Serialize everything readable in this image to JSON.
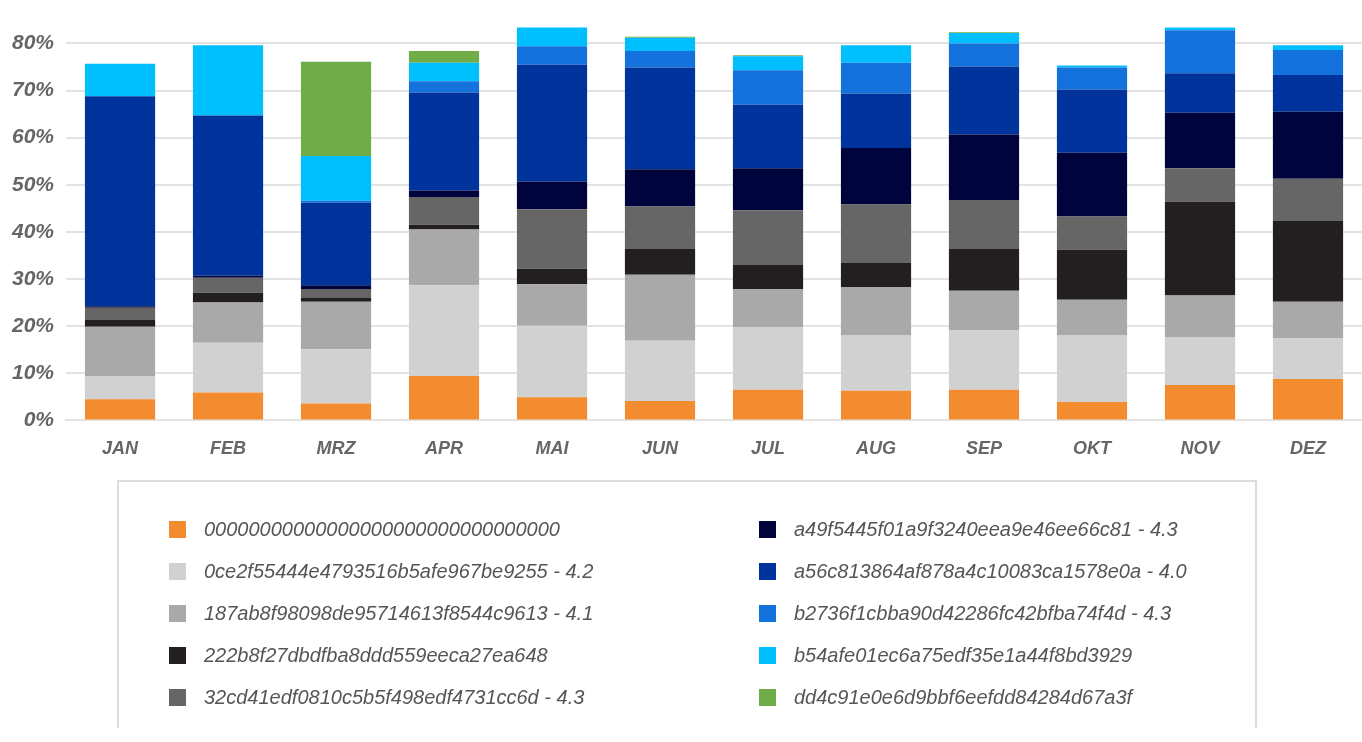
{
  "chart_data": {
    "type": "bar",
    "stacked": true,
    "categories": [
      "JAN",
      "FEB",
      "MRZ",
      "APR",
      "MAI",
      "JUN",
      "JUL",
      "AUG",
      "SEP",
      "OKT",
      "NOV",
      "DEZ"
    ],
    "series": [
      {
        "name": "00000000000000000000000000000000",
        "color": "#f28c2e",
        "values": [
          4.5,
          5.9,
          3.6,
          9.4,
          4.9,
          4.1,
          6.5,
          6.3,
          6.5,
          3.9,
          7.5,
          8.8
        ]
      },
      {
        "name": "0ce2f55444e4793516b5afe967be9255 - 4.2",
        "color": "#d1d1d1",
        "values": [
          4.9,
          10.6,
          11.5,
          19.3,
          15.2,
          12.8,
          13.2,
          11.8,
          12.6,
          14.2,
          10.2,
          8.7
        ]
      },
      {
        "name": "187ab8f98098de95714613f8544c9613 - 4.1",
        "color": "#a9a9a9",
        "values": [
          10.5,
          8.5,
          10.1,
          11.8,
          8.8,
          14.0,
          8.2,
          10.2,
          8.4,
          7.5,
          8.8,
          7.7
        ]
      },
      {
        "name": "222b8f27dbdfba8ddd559eeca27ea648",
        "color": "#231f20",
        "values": [
          1.5,
          2.1,
          0.8,
          1.0,
          3.3,
          5.5,
          5.1,
          5.1,
          8.9,
          10.6,
          19.9,
          17.1
        ]
      },
      {
        "name": "32cd41edf0810c5b5f498edf4731cc6d - 4.3",
        "color": "#666666",
        "values": [
          2.5,
          3.2,
          1.9,
          5.9,
          12.6,
          9.0,
          11.6,
          12.4,
          10.4,
          7.1,
          7.1,
          9.0
        ]
      },
      {
        "name": "a49f5445f01a9f3240eea9e46ee66c81 - 4.3",
        "color": "#00043d",
        "values": [
          0.3,
          0.4,
          0.8,
          1.4,
          5.9,
          7.9,
          8.9,
          12.0,
          13.9,
          13.5,
          11.8,
          14.2
        ]
      },
      {
        "name": "a56c813864af878a4c10083ca1578e0a - 4.0",
        "color": "#00349c",
        "values": [
          44.6,
          34.0,
          17.5,
          20.8,
          24.8,
          21.6,
          13.5,
          11.6,
          14.4,
          13.4,
          8.4,
          7.8
        ]
      },
      {
        "name": "b2736f1cbba90d42286fc42bfba74f4d - 4.3",
        "color": "#1372db",
        "values": [
          0,
          0,
          0.4,
          2.4,
          3.9,
          3.5,
          7.3,
          6.5,
          4.9,
          4.7,
          9.1,
          5.3
        ]
      },
      {
        "name": "b54afe01ec6a75edf35e1a44f8bd3929",
        "color": "#00bfff",
        "values": [
          6.9,
          14.9,
          9.5,
          3.9,
          4.0,
          2.8,
          3.0,
          3.7,
          2.2,
          0.4,
          0.6,
          1.0
        ]
      },
      {
        "name": "dd4c91e0e6d9bbf6eefdd84284d67a3f",
        "color": "#70ac47",
        "values": [
          0,
          0,
          20.0,
          2.5,
          0,
          0.2,
          0.2,
          0,
          0.2,
          0,
          0,
          0
        ]
      }
    ],
    "ylim": [
      0,
      84
    ],
    "yticks": [
      {
        "value": 0,
        "label": "0%"
      },
      {
        "value": 10,
        "label": "10%"
      },
      {
        "value": 20,
        "label": "20%"
      },
      {
        "value": 30,
        "label": "30%"
      },
      {
        "value": 40,
        "label": "40%"
      },
      {
        "value": 50,
        "label": "50%"
      },
      {
        "value": 60,
        "label": "60%"
      },
      {
        "value": 70,
        "label": "70%"
      },
      {
        "value": 80,
        "label": "80%"
      }
    ],
    "grid": "y",
    "legend": "bottom"
  }
}
